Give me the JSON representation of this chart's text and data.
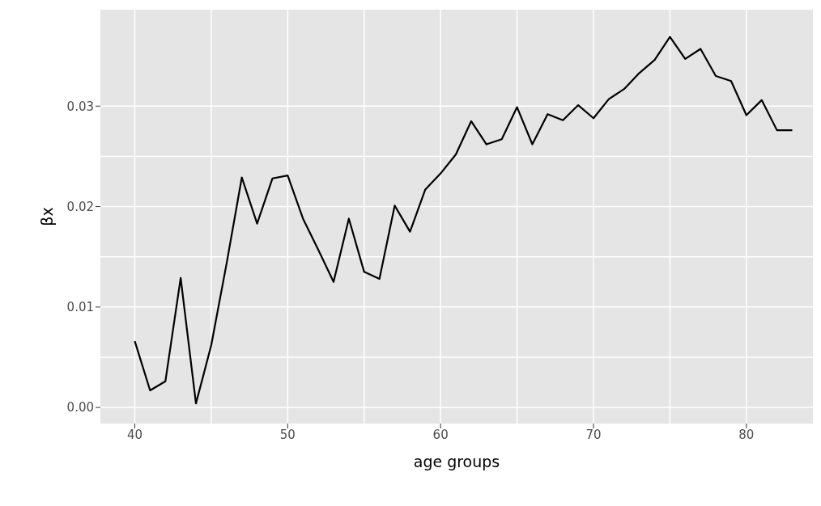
{
  "chart_data": {
    "type": "line",
    "xlabel": "age groups",
    "ylabel": "βx",
    "x": [
      40,
      41,
      42,
      43,
      44,
      45,
      46,
      47,
      48,
      49,
      50,
      51,
      52,
      53,
      54,
      55,
      56,
      57,
      58,
      59,
      60,
      61,
      62,
      63,
      64,
      65,
      66,
      67,
      68,
      69,
      70,
      71,
      72,
      73,
      74,
      75,
      76,
      77,
      78,
      79,
      80,
      81,
      82,
      83
    ],
    "series": [
      {
        "color": "#000000",
        "values": [
          0.0066,
          0.0017,
          0.0026,
          0.0129,
          0.0004,
          0.0062,
          0.0143,
          0.0229,
          0.0183,
          0.0228,
          0.0231,
          0.0188,
          0.0157,
          0.0125,
          0.0188,
          0.0135,
          0.0128,
          0.0201,
          0.0175,
          0.0217,
          0.0233,
          0.0252,
          0.0285,
          0.0262,
          0.0267,
          0.0299,
          0.0262,
          0.0292,
          0.0286,
          0.0301,
          0.0288,
          0.0307,
          0.0317,
          0.0333,
          0.0346,
          0.0369,
          0.0347,
          0.0357,
          0.033,
          0.0325,
          0.0291,
          0.0306,
          0.0276,
          0.0276
        ]
      }
    ],
    "xlim": [
      37.75,
      84.35
    ],
    "ylim": [
      -0.0016,
      0.0396
    ],
    "xticks": [
      40,
      50,
      60,
      70,
      80
    ],
    "yticks": [
      {
        "value": 0,
        "label": "0.00"
      },
      {
        "value": 0.01,
        "label": "0.01"
      },
      {
        "value": 0.02,
        "label": "0.02"
      },
      {
        "value": 0.03,
        "label": "0.03"
      }
    ],
    "grid": true,
    "marker": "none",
    "line_style": "solid"
  }
}
